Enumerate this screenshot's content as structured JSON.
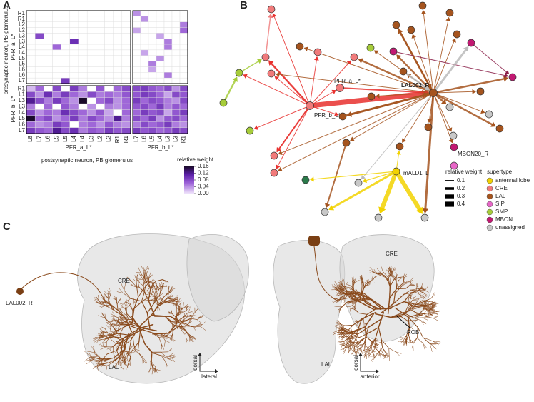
{
  "panel_a": {
    "label": "A",
    "y_title": "presynaptic neuron, PB glomerulus",
    "x_title": "postsynaptic neuron, PB glomerulus",
    "row_groups": [
      "PFR_a_L*",
      "PFR_b_L*"
    ],
    "col_groups": [
      "PFR_a_L*",
      "PFR_b_L*"
    ],
    "rows_a": [
      "R1",
      "R1",
      "L2",
      "L2",
      "L3",
      "L3",
      "L4",
      "L4",
      "L5",
      "L5",
      "L6",
      "L6",
      "L7"
    ],
    "rows_b": [
      "R1",
      "L1",
      "L3",
      "L3",
      "L4",
      "L5",
      "L6",
      "L7"
    ],
    "cols_a": [
      "L8",
      "L7",
      "L6",
      "L5",
      "L5",
      "L4",
      "L4",
      "L3",
      "L2",
      "L2",
      "R1",
      "R1"
    ],
    "cols_b": [
      "L7",
      "L6",
      "L5",
      "L4",
      "L3",
      "L3",
      "R1"
    ],
    "matrix": [
      [
        0,
        0,
        0,
        0,
        0,
        0,
        0,
        0,
        0,
        0,
        0,
        0,
        0.04,
        0,
        0,
        0,
        0,
        0,
        0
      ],
      [
        0,
        0,
        0,
        0,
        0,
        0,
        0,
        0,
        0,
        0,
        0,
        0,
        0,
        0.04,
        0,
        0,
        0,
        0,
        0
      ],
      [
        0,
        0,
        0,
        0,
        0,
        0,
        0,
        0,
        0,
        0,
        0,
        0,
        0,
        0,
        0,
        0,
        0,
        0,
        0.05
      ],
      [
        0,
        0,
        0,
        0,
        0,
        0,
        0,
        0,
        0,
        0,
        0,
        0,
        0.03,
        0,
        0,
        0,
        0,
        0,
        0.06
      ],
      [
        0,
        0.08,
        0,
        0,
        0,
        0,
        0,
        0,
        0,
        0,
        0,
        0,
        0,
        0,
        0,
        0.03,
        0,
        0,
        0
      ],
      [
        0,
        0,
        0,
        0,
        0,
        0.1,
        0,
        0,
        0,
        0,
        0,
        0,
        0,
        0,
        0,
        0,
        0.05,
        0,
        0
      ],
      [
        0,
        0,
        0,
        0.06,
        0,
        0,
        0,
        0,
        0,
        0,
        0,
        0,
        0,
        0,
        0,
        0,
        0.05,
        0,
        0
      ],
      [
        0,
        0,
        0,
        0,
        0,
        0,
        0,
        0,
        0,
        0,
        0,
        0,
        0,
        0.03,
        0,
        0,
        0,
        0,
        0
      ],
      [
        0,
        0,
        0,
        0,
        0,
        0,
        0,
        0,
        0,
        0,
        0,
        0,
        0,
        0,
        0,
        0.04,
        0,
        0,
        0
      ],
      [
        0,
        0,
        0,
        0,
        0,
        0,
        0,
        0,
        0,
        0,
        0,
        0,
        0,
        0,
        0.05,
        0,
        0,
        0,
        0
      ],
      [
        0,
        0,
        0,
        0,
        0,
        0,
        0,
        0,
        0,
        0,
        0,
        0,
        0,
        0,
        0.03,
        0,
        0,
        0,
        0
      ],
      [
        0,
        0,
        0,
        0,
        0,
        0,
        0,
        0,
        0,
        0,
        0,
        0,
        0,
        0,
        0,
        0,
        0.05,
        0,
        0
      ],
      [
        0,
        0,
        0,
        0,
        0.09,
        0,
        0,
        0,
        0,
        0,
        0,
        0,
        0,
        0,
        0,
        0,
        0,
        0,
        0
      ],
      [
        0.02,
        0.06,
        0,
        0.08,
        0,
        0.09,
        0.05,
        0,
        0.07,
        0,
        0.06,
        0.08,
        0.08,
        0.09,
        0.07,
        0.06,
        0.08,
        0.04,
        0.08
      ],
      [
        0.08,
        0.04,
        0.1,
        0.05,
        0.09,
        0.06,
        0.04,
        0.08,
        0.05,
        0.06,
        0.05,
        0.07,
        0.07,
        0.09,
        0.08,
        0.06,
        0.03,
        0.08,
        0.07
      ],
      [
        0.12,
        0.08,
        0.05,
        0.09,
        0.06,
        0.04,
        0.16,
        0,
        0.06,
        0.08,
        0.04,
        0.06,
        0.09,
        0.06,
        0.08,
        0.07,
        0.05,
        0.04,
        0.08
      ],
      [
        0.05,
        0,
        0.06,
        0,
        0.07,
        0.05,
        0,
        0.04,
        0,
        0.05,
        0.04,
        0.06,
        0.07,
        0.08,
        0.06,
        0.09,
        0.05,
        0.07,
        0.06
      ],
      [
        0.08,
        0.04,
        0.06,
        0.05,
        0.1,
        0.08,
        0.06,
        0.04,
        0.07,
        0.03,
        0,
        0.06,
        0.06,
        0.09,
        0.07,
        0.08,
        0.03,
        0.07,
        0.09
      ],
      [
        0.16,
        0.06,
        0.08,
        0.04,
        0.06,
        0.09,
        0.05,
        0.08,
        0.06,
        0.04,
        0.12,
        0.05,
        0.08,
        0.06,
        0.09,
        0.04,
        0.07,
        0.08,
        0.06
      ],
      [
        0.06,
        0.04,
        0.05,
        0.09,
        0.07,
        0,
        0.05,
        0.06,
        0.04,
        0.07,
        0.05,
        0.04,
        0.05,
        0.08,
        0.06,
        0.07,
        0.09,
        0.05,
        0.04
      ],
      [
        0.09,
        0.07,
        0.06,
        0.12,
        0.08,
        0.1,
        0.05,
        0.07,
        0.06,
        0.09,
        0.07,
        0.08,
        0.09,
        0.07,
        0.08,
        0.06,
        0.07,
        0.09,
        0.08
      ]
    ],
    "colorbar": {
      "title": "relative weight",
      "lim": [
        0,
        0.16
      ],
      "ticks": [
        0.16,
        0.12,
        0.08,
        0.04,
        {
          "value": 0,
          "label": "0.00"
        }
      ]
    }
  },
  "panel_b": {
    "label": "B",
    "node_labels": [
      "PFR_a_L*",
      "LAL002_R",
      "PFR_b_L*",
      "MBON20_R",
      "mALD1_L"
    ],
    "weight_legend": {
      "title": "relative weight",
      "ticks": [
        0.1,
        0.2,
        0.3,
        0.4
      ]
    },
    "supertype_title": "supertype",
    "supertypes": [
      {
        "name": "antennal lobe",
        "color": "#f2d200"
      },
      {
        "name": "CRE",
        "color": "#f07a7a"
      },
      {
        "name": "LAL",
        "color": "#a5541e"
      },
      {
        "name": "SIP",
        "color": "#e766c7"
      },
      {
        "name": "SMP",
        "color": "#a6cc3a"
      },
      {
        "name": "MBON",
        "color": "#c21872"
      },
      {
        "name": "unassigned",
        "color": "#c8c8c8"
      }
    ]
  },
  "panel_c": {
    "label": "C",
    "neuron": "LAL002_R",
    "left_regions": [
      "CRE",
      "LAL"
    ],
    "left_axes": [
      "dorsal",
      "lateral"
    ],
    "right_regions": [
      "CRE",
      "ROB",
      "LAL"
    ],
    "right_axes": [
      "dorsal",
      "anterior"
    ]
  }
}
